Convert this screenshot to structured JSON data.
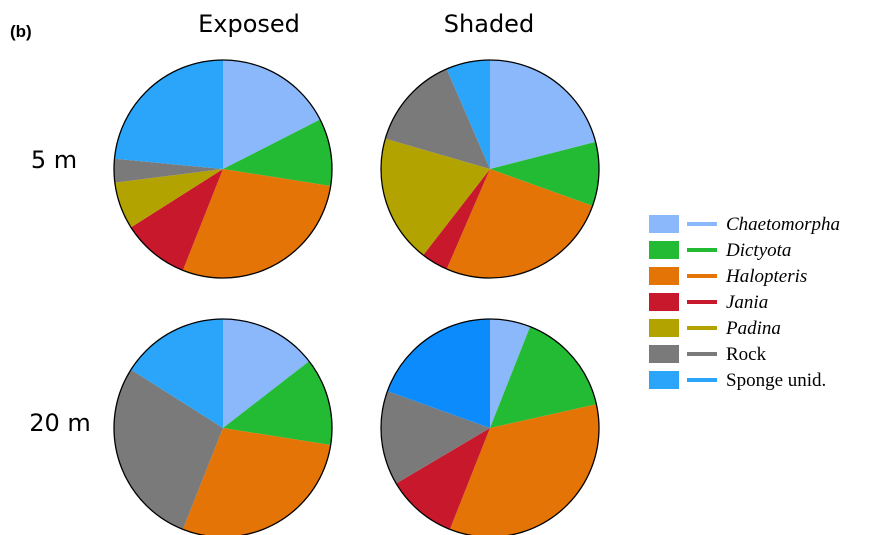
{
  "panel_label": "(b)",
  "chart_data": {
    "type": "pie",
    "columns": [
      "Exposed",
      "Shaded"
    ],
    "rows": [
      "5 m",
      "20 m"
    ],
    "categories": [
      {
        "name": "Chaetomorpha",
        "color": "#8ab8fa",
        "italic": true
      },
      {
        "name": "Dictyota",
        "color": "#22bb33",
        "italic": true
      },
      {
        "name": "Halopteris",
        "color": "#e37405",
        "italic": true
      },
      {
        "name": "Jania",
        "color": "#c8192c",
        "italic": true
      },
      {
        "name": "Padina",
        "color": "#b3a300",
        "italic": true
      },
      {
        "name": "Rock",
        "color": "#7a7a7a",
        "italic": false
      },
      {
        "name": "Sponge unid.",
        "color": "#2aa5fa",
        "italic": false
      }
    ],
    "pies": [
      {
        "row": "5 m",
        "column": "Exposed",
        "values": [
          17.5,
          10,
          28.5,
          10,
          7,
          3.5,
          23.5
        ]
      },
      {
        "row": "5 m",
        "column": "Shaded",
        "values": [
          21,
          9.5,
          26,
          4,
          19,
          14,
          6.5
        ]
      },
      {
        "row": "20 m",
        "column": "Exposed",
        "values": [
          14.5,
          13,
          28.5,
          0,
          0,
          28,
          16
        ]
      },
      {
        "row": "20 m",
        "column": "Shaded",
        "values": [
          6,
          15.5,
          34.5,
          10.5,
          0,
          14,
          19.5
        ]
      }
    ],
    "legend_position": "right",
    "start_angle": "12 o'clock",
    "direction": "clockwise"
  }
}
